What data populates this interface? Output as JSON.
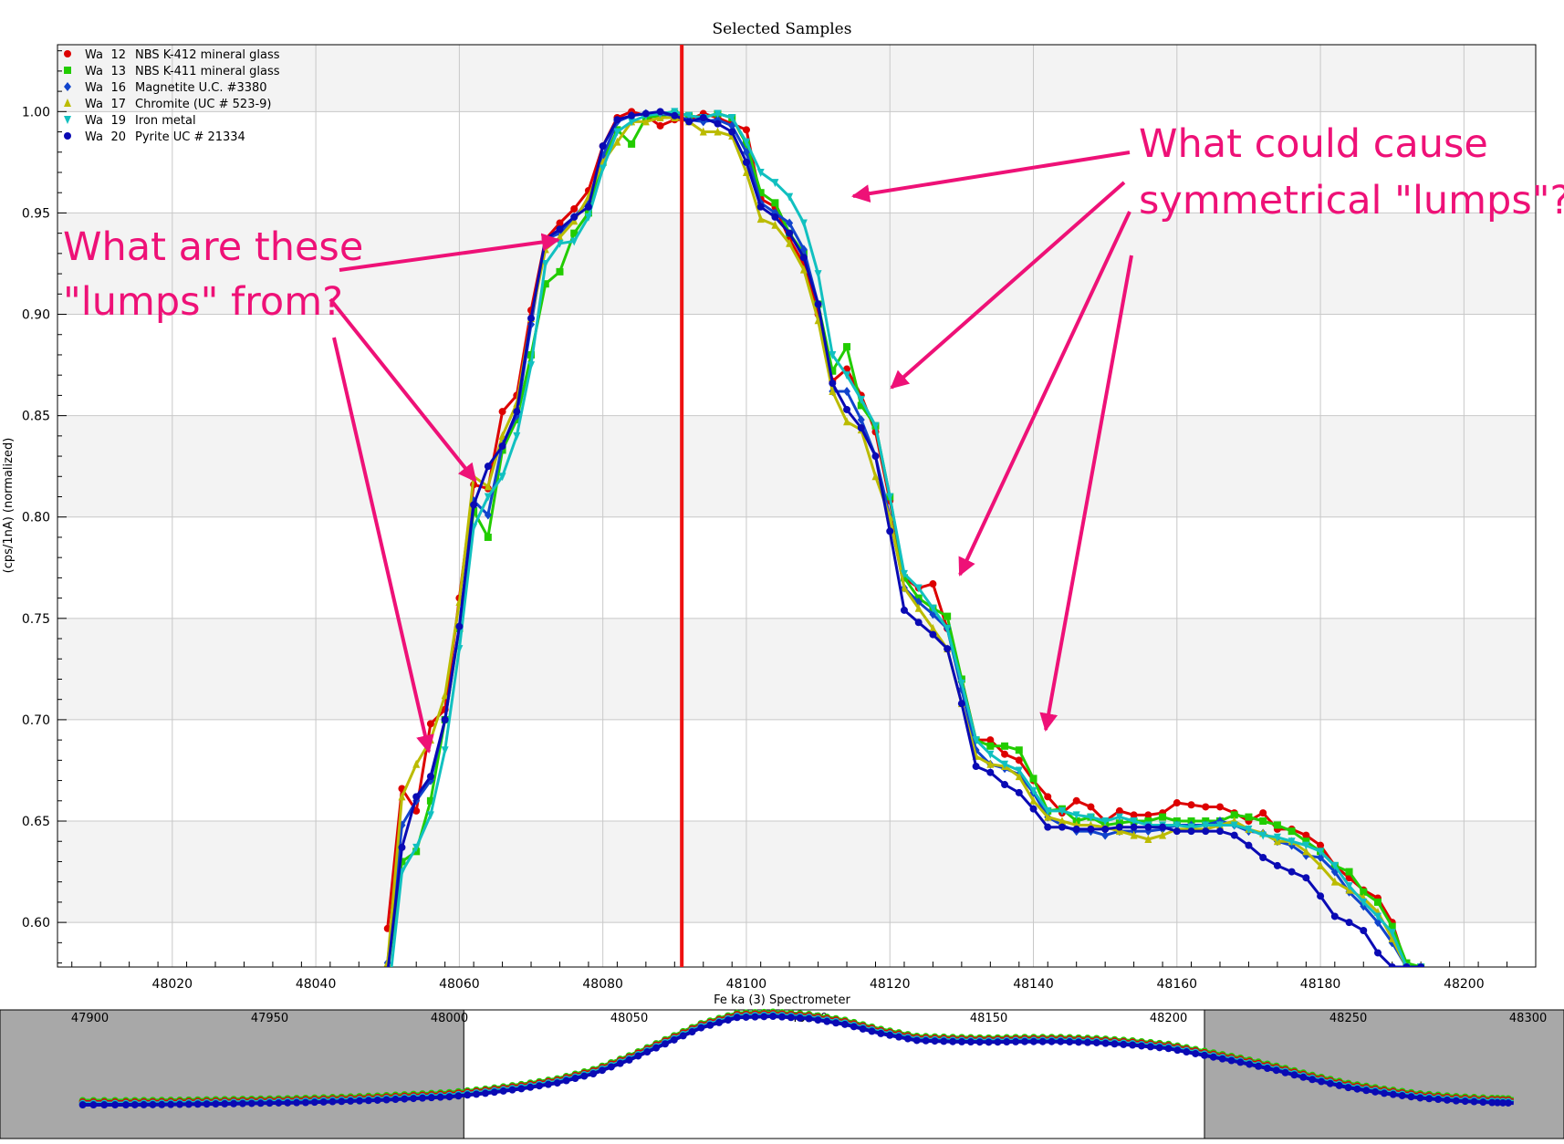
{
  "chart_data": {
    "type": "line",
    "title": "Selected Samples",
    "ylabel": "(cps/1nA) (normalized)",
    "xlabel": "Fe ka (3) Spectrometer",
    "xlim": [
      48004,
      48210
    ],
    "ylim": [
      0.578,
      1.033
    ],
    "x_ticks": [
      "48020",
      "48040",
      "48060",
      "48080",
      "48100",
      "48120",
      "48140",
      "48160",
      "48180",
      "48200"
    ],
    "y_ticks": [
      "0.60",
      "0.65",
      "0.70",
      "0.75",
      "0.80",
      "0.85",
      "0.90",
      "0.95",
      "1.00"
    ],
    "grid": true,
    "legend_position": "top-left",
    "marker_line_x": 48091,
    "x": [
      48050,
      48052,
      48054,
      48056,
      48058,
      48060,
      48062,
      48064,
      48066,
      48068,
      48070,
      48072,
      48074,
      48076,
      48078,
      48080,
      48082,
      48084,
      48086,
      48088,
      48090,
      48092,
      48094,
      48096,
      48098,
      48100,
      48102,
      48104,
      48106,
      48108,
      48110,
      48112,
      48114,
      48116,
      48118,
      48120,
      48122,
      48124,
      48126,
      48128,
      48130,
      48132,
      48134,
      48136,
      48138,
      48140,
      48142,
      48144,
      48146,
      48148,
      48150,
      48152,
      48154,
      48156,
      48158,
      48160,
      48162,
      48164,
      48166,
      48168,
      48170,
      48172,
      48174,
      48176,
      48178,
      48180,
      48182,
      48184,
      48186,
      48188,
      48190,
      48192,
      48194
    ],
    "series": [
      {
        "name": "Wa 12 NBS K-412 mineral glass",
        "color": "#dd0000",
        "marker": "circle",
        "values": [
          0.597,
          0.666,
          0.655,
          0.698,
          0.705,
          0.76,
          0.816,
          0.814,
          0.852,
          0.86,
          0.902,
          0.937,
          0.945,
          0.952,
          0.961,
          0.983,
          0.997,
          1.0,
          0.998,
          0.993,
          0.996,
          0.996,
          0.999,
          0.997,
          0.994,
          0.991,
          0.957,
          0.953,
          0.937,
          0.925,
          0.9,
          0.867,
          0.873,
          0.86,
          0.842,
          0.808,
          0.77,
          0.765,
          0.767,
          0.745,
          0.72,
          0.69,
          0.69,
          0.683,
          0.68,
          0.67,
          0.662,
          0.654,
          0.66,
          0.657,
          0.65,
          0.655,
          0.653,
          0.653,
          0.654,
          0.659,
          0.658,
          0.657,
          0.657,
          0.654,
          0.65,
          0.654,
          0.646,
          0.646,
          0.643,
          0.638,
          0.628,
          0.622,
          0.616,
          0.612,
          0.6,
          0.578,
          0.578
        ]
      },
      {
        "name": "Wa 13 NBS K-411 mineral glass",
        "color": "#22cc00",
        "marker": "square",
        "values": [
          0.575,
          0.63,
          0.635,
          0.66,
          0.7,
          0.745,
          0.803,
          0.79,
          0.833,
          0.848,
          0.88,
          0.915,
          0.921,
          0.94,
          0.95,
          0.975,
          0.991,
          0.984,
          0.997,
          0.998,
          0.999,
          0.998,
          0.997,
          0.999,
          0.997,
          0.984,
          0.96,
          0.955,
          0.94,
          0.93,
          0.905,
          0.872,
          0.884,
          0.855,
          0.845,
          0.81,
          0.77,
          0.76,
          0.755,
          0.751,
          0.72,
          0.69,
          0.687,
          0.687,
          0.685,
          0.671,
          0.655,
          0.656,
          0.65,
          0.652,
          0.648,
          0.649,
          0.65,
          0.65,
          0.652,
          0.65,
          0.65,
          0.65,
          0.65,
          0.653,
          0.652,
          0.65,
          0.648,
          0.645,
          0.64,
          0.635,
          0.628,
          0.625,
          0.615,
          0.61,
          0.598,
          0.58,
          0.578
        ]
      },
      {
        "name": "Wa 16 Magnetite U.C. #3380",
        "color": "#1144cc",
        "marker": "diamond",
        "values": [
          0.58,
          0.648,
          0.66,
          0.67,
          0.7,
          0.746,
          0.808,
          0.801,
          0.836,
          0.85,
          0.895,
          0.937,
          0.94,
          0.948,
          0.956,
          0.978,
          0.995,
          0.998,
          0.999,
          0.999,
          0.998,
          0.996,
          0.995,
          0.996,
          0.993,
          0.98,
          0.955,
          0.95,
          0.945,
          0.932,
          0.905,
          0.862,
          0.862,
          0.848,
          0.83,
          0.8,
          0.765,
          0.758,
          0.752,
          0.745,
          0.715,
          0.685,
          0.678,
          0.676,
          0.673,
          0.664,
          0.652,
          0.648,
          0.645,
          0.645,
          0.643,
          0.645,
          0.645,
          0.645,
          0.646,
          0.648,
          0.648,
          0.648,
          0.65,
          0.648,
          0.645,
          0.644,
          0.64,
          0.638,
          0.633,
          0.632,
          0.625,
          0.615,
          0.608,
          0.6,
          0.59,
          0.578,
          0.578
        ]
      },
      {
        "name": "Wa 17 Chromite (UC # 523-9)",
        "color": "#bbbb00",
        "marker": "triangle-up",
        "values": [
          0.58,
          0.662,
          0.678,
          0.69,
          0.712,
          0.758,
          0.82,
          0.815,
          0.84,
          0.856,
          0.898,
          0.932,
          0.938,
          0.946,
          0.958,
          0.975,
          0.985,
          0.995,
          0.995,
          0.997,
          0.997,
          0.995,
          0.99,
          0.99,
          0.988,
          0.97,
          0.947,
          0.944,
          0.935,
          0.922,
          0.897,
          0.862,
          0.847,
          0.843,
          0.82,
          0.8,
          0.765,
          0.755,
          0.745,
          0.735,
          0.708,
          0.682,
          0.678,
          0.677,
          0.672,
          0.66,
          0.652,
          0.65,
          0.648,
          0.648,
          0.647,
          0.645,
          0.643,
          0.641,
          0.643,
          0.646,
          0.646,
          0.646,
          0.648,
          0.65,
          0.646,
          0.644,
          0.64,
          0.64,
          0.635,
          0.628,
          0.62,
          0.616,
          0.612,
          0.605,
          0.592,
          0.578,
          0.578
        ]
      },
      {
        "name": "Wa 19 Iron metal",
        "color": "#11c0c0",
        "marker": "triangle-down",
        "values": [
          0.56,
          0.625,
          0.637,
          0.653,
          0.685,
          0.735,
          0.795,
          0.81,
          0.82,
          0.84,
          0.875,
          0.925,
          0.935,
          0.936,
          0.948,
          0.972,
          0.99,
          0.995,
          0.998,
          0.999,
          1.0,
          0.998,
          0.997,
          0.999,
          0.997,
          0.985,
          0.97,
          0.965,
          0.958,
          0.945,
          0.92,
          0.88,
          0.87,
          0.858,
          0.845,
          0.81,
          0.772,
          0.765,
          0.755,
          0.745,
          0.718,
          0.69,
          0.683,
          0.678,
          0.675,
          0.665,
          0.655,
          0.655,
          0.653,
          0.652,
          0.65,
          0.652,
          0.65,
          0.648,
          0.648,
          0.648,
          0.647,
          0.648,
          0.648,
          0.648,
          0.646,
          0.643,
          0.642,
          0.64,
          0.638,
          0.635,
          0.628,
          0.618,
          0.61,
          0.603,
          0.595,
          0.578,
          0.578
        ]
      },
      {
        "name": "Wa 20 Pyrite UC # 21334",
        "color": "#0a0ab4",
        "marker": "circle",
        "values": [
          0.575,
          0.637,
          0.662,
          0.672,
          0.7,
          0.746,
          0.806,
          0.825,
          0.835,
          0.852,
          0.898,
          0.937,
          0.942,
          0.948,
          0.953,
          0.983,
          0.996,
          0.998,
          0.999,
          1.0,
          0.998,
          0.995,
          0.997,
          0.994,
          0.99,
          0.975,
          0.953,
          0.948,
          0.94,
          0.928,
          0.905,
          0.866,
          0.853,
          0.844,
          0.83,
          0.793,
          0.754,
          0.748,
          0.742,
          0.735,
          0.708,
          0.677,
          0.674,
          0.668,
          0.664,
          0.656,
          0.647,
          0.647,
          0.646,
          0.646,
          0.646,
          0.647,
          0.647,
          0.647,
          0.647,
          0.645,
          0.645,
          0.645,
          0.645,
          0.643,
          0.638,
          0.632,
          0.628,
          0.625,
          0.622,
          0.613,
          0.603,
          0.6,
          0.596,
          0.585,
          0.578,
          0.578,
          0.578
        ]
      }
    ]
  },
  "overview_data": {
    "xlim": [
      47875,
      48310
    ],
    "x_ticks": [
      "47900",
      "47950",
      "48000",
      "48050",
      "48100",
      "48150",
      "48200",
      "48250",
      "48300"
    ],
    "window_range": [
      48004,
      48210
    ],
    "x": [
      47898,
      47910,
      47920,
      47930,
      47940,
      47950,
      47960,
      47970,
      47980,
      47990,
      48000,
      48010,
      48020,
      48030,
      48040,
      48050,
      48060,
      48070,
      48080,
      48090,
      48100,
      48110,
      48120,
      48130,
      48140,
      48150,
      48160,
      48170,
      48180,
      48190,
      48200,
      48210,
      48220,
      48230,
      48240,
      48250,
      48260,
      48270,
      48280,
      48290,
      48296
    ],
    "values": [
      0.23,
      0.23,
      0.232,
      0.236,
      0.24,
      0.245,
      0.25,
      0.26,
      0.27,
      0.285,
      0.3,
      0.33,
      0.37,
      0.42,
      0.5,
      0.62,
      0.76,
      0.9,
      0.99,
      1.0,
      0.98,
      0.93,
      0.85,
      0.79,
      0.78,
      0.775,
      0.78,
      0.78,
      0.77,
      0.75,
      0.72,
      0.66,
      0.6,
      0.53,
      0.45,
      0.38,
      0.33,
      0.29,
      0.265,
      0.25,
      0.245
    ]
  },
  "annotations": {
    "left_question": [
      "What are these",
      "\"lumps\" from?"
    ],
    "right_question": [
      "What could cause",
      "symmetrical \"lumps\"?"
    ],
    "color": "#ee1177"
  }
}
